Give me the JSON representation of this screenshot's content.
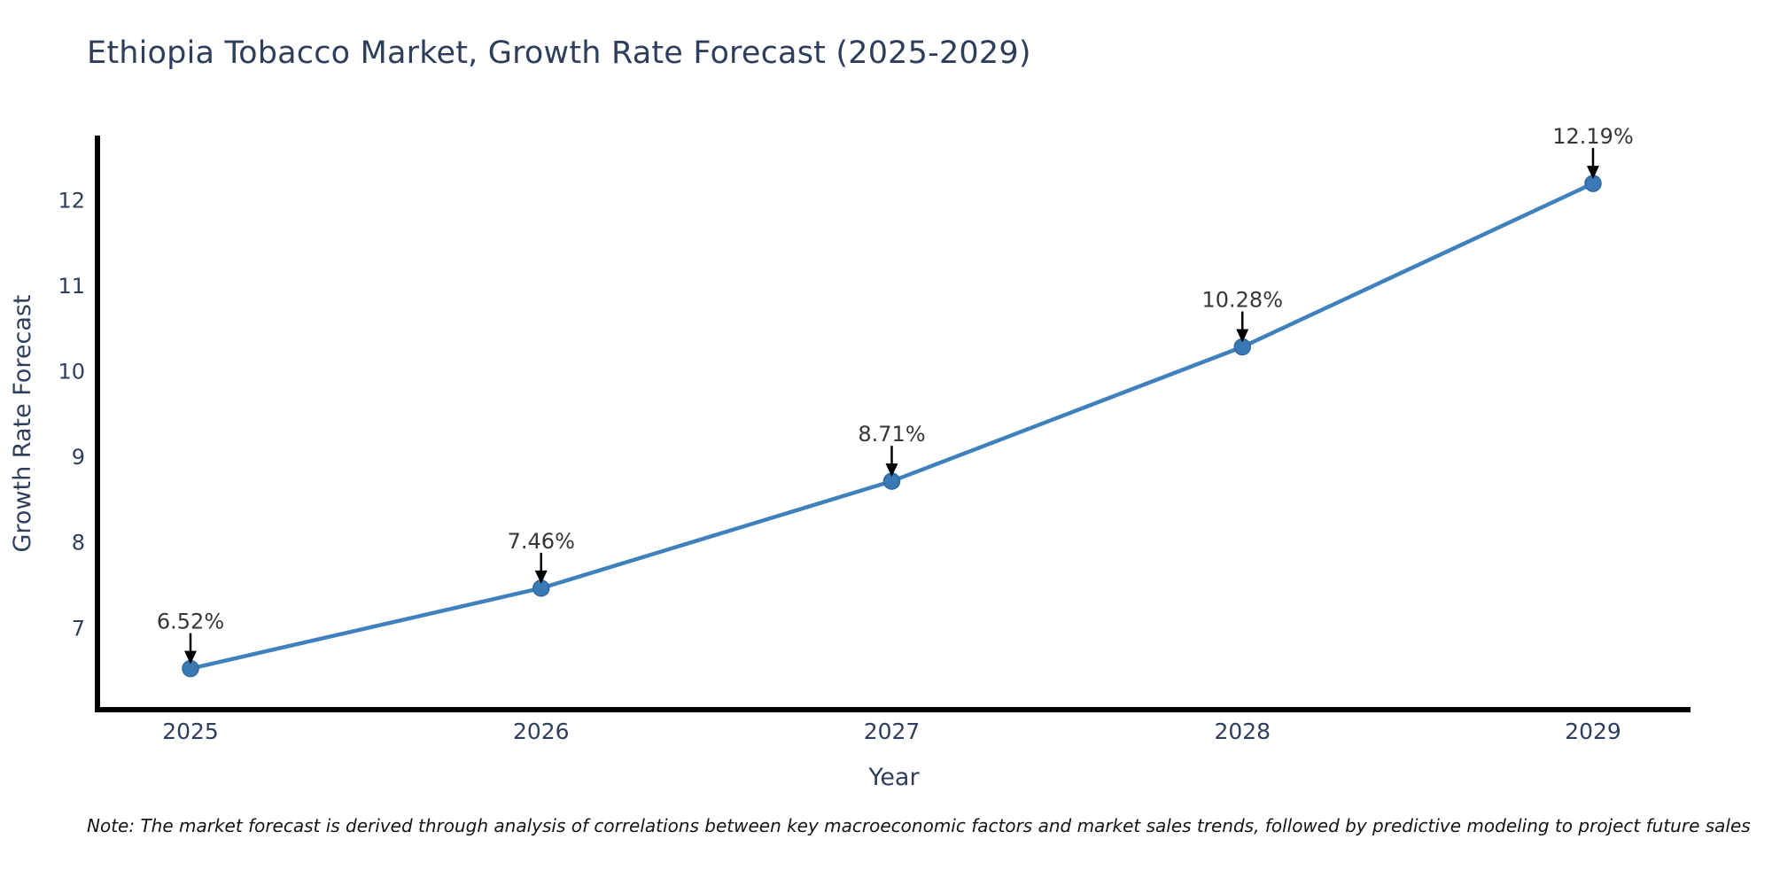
{
  "header": {
    "title": "Ethiopia Tobacco Market, Growth Rate Forecast (2025-2029)"
  },
  "footnote": {
    "text": "Note: The market forecast is derived through analysis of correlations between key macroeconomic factors and market sales trends, followed by predictive modeling to project future sales"
  },
  "chart_data": {
    "type": "line",
    "title": "Ethiopia Tobacco Market, Growth Rate Forecast (2025-2029)",
    "xlabel": "Year",
    "ylabel": "Growth Rate Forecast",
    "x": [
      "2025",
      "2026",
      "2027",
      "2028",
      "2029"
    ],
    "series": [
      {
        "name": "Growth Rate Forecast",
        "values": [
          6.52,
          7.46,
          8.71,
          10.28,
          12.19
        ]
      }
    ],
    "point_labels": [
      "6.52%",
      "7.46%",
      "8.71%",
      "10.28%",
      "12.19%"
    ],
    "yticks": [
      7,
      8,
      9,
      10,
      11,
      12
    ],
    "ylim": [
      6.04,
      12.75
    ],
    "grid": false,
    "legend": "none",
    "annotation_arrows": "down",
    "colors": {
      "line": "#3f81bd",
      "marker": "#3b79b5",
      "marker_edge": "#2e689f",
      "axis": "#000000",
      "tick_text": "#2e3f5c",
      "axis_label_text": "#2e3f5c",
      "annotation_text": "#363636",
      "arrow": "#000000",
      "title_text": "#2e3f5c"
    }
  }
}
